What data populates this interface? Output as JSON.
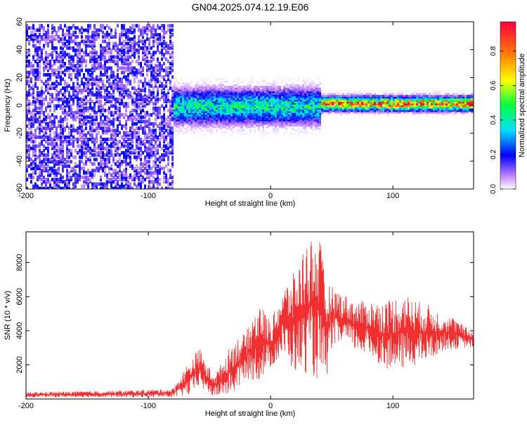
{
  "title": "GN04.2025.074.12.19.E06",
  "chart_data": [
    {
      "type": "heatmap",
      "xlabel": "Height of straight line (km)",
      "ylabel": "Frequency (Hz)",
      "xlim": [
        -200,
        166
      ],
      "ylim": [
        -60,
        60
      ],
      "xticks": [
        -200,
        -100,
        0,
        100
      ],
      "yticks": [
        -60,
        -40,
        -20,
        0,
        20,
        40,
        60
      ],
      "colorbar": {
        "label": "Normalized spectral amplitude",
        "range": [
          0.0,
          0.97
        ],
        "ticks": [
          0.0,
          0.2,
          0.4,
          0.6,
          0.8
        ],
        "tick_labels": [
          "0.0",
          "0.2",
          "0.4",
          "0.6",
          "0.8"
        ]
      },
      "regions": [
        {
          "x_range": [
            -200,
            -80
          ],
          "freq_range": [
            -60,
            60
          ],
          "amplitude": 0.1,
          "description": "broadband noise"
        },
        {
          "x_range": [
            -80,
            40
          ],
          "freq_center": 0,
          "freq_halfwidth": 10,
          "amplitude": 0.45
        },
        {
          "x_range": [
            40,
            166
          ],
          "freq_center": 2,
          "freq_halfwidth": 4,
          "amplitude": 0.9
        }
      ]
    },
    {
      "type": "line",
      "xlabel": "Height of straight line (km)",
      "ylabel": "SNR (10 * v/v)",
      "xlim": [
        -200,
        166
      ],
      "ylim": [
        0,
        9800
      ],
      "xticks": [
        -200,
        -100,
        0,
        100
      ],
      "yticks": [
        2000,
        4000,
        6000,
        8000
      ],
      "color": "#f03030",
      "envelope": {
        "x": [
          -200,
          -120,
          -80,
          -65,
          -58,
          -52,
          -45,
          -30,
          -20,
          -10,
          0,
          10,
          20,
          30,
          40,
          45,
          50,
          60,
          70,
          80,
          90,
          100,
          110,
          120,
          130,
          140,
          150,
          160,
          166
        ],
        "min": [
          100,
          100,
          100,
          200,
          800,
          300,
          100,
          300,
          1200,
          1000,
          1800,
          2500,
          1500,
          1500,
          1000,
          800,
          3000,
          3200,
          2800,
          2500,
          2000,
          1500,
          1800,
          2000,
          2200,
          2800,
          2900,
          3000,
          3000
        ],
        "max": [
          400,
          500,
          600,
          2400,
          3000,
          2000,
          1500,
          3500,
          3900,
          5800,
          4600,
          6500,
          7500,
          9500,
          9700,
          7000,
          6600,
          6200,
          5700,
          5800,
          5700,
          6000,
          6200,
          5800,
          5500,
          5000,
          4800,
          4200,
          4000
        ]
      }
    }
  ]
}
